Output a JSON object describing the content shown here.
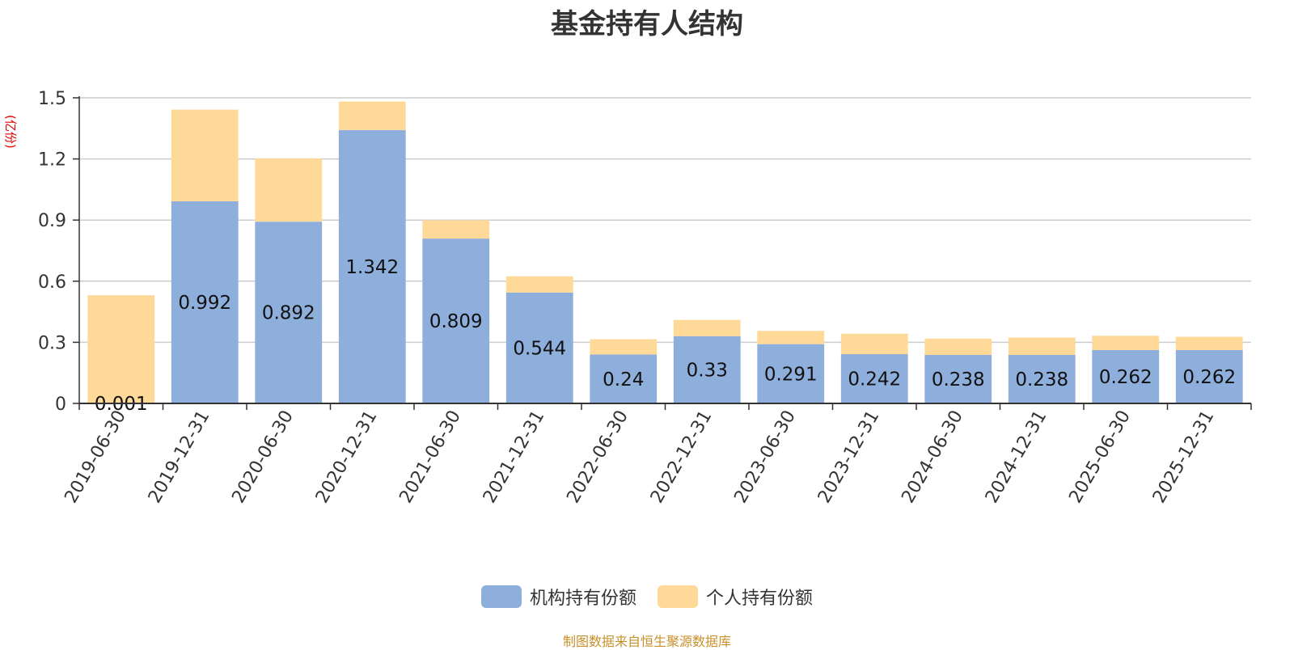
{
  "chart_data": {
    "type": "bar",
    "stacked": true,
    "title": "基金持有人结构",
    "unit": "(亿份)",
    "categories": [
      "2019-06-30",
      "2019-12-31",
      "2020-06-30",
      "2020-12-31",
      "2021-06-30",
      "2021-12-31",
      "2022-06-30",
      "2022-12-31",
      "2023-06-30",
      "2023-12-31",
      "2024-06-30",
      "2024-12-31",
      "2025-06-30",
      "2025-12-31"
    ],
    "series": [
      {
        "name": "机构持有份额",
        "color": "#8eaedb",
        "values": [
          0.001,
          0.992,
          0.892,
          1.342,
          0.809,
          0.544,
          0.24,
          0.33,
          0.291,
          0.242,
          0.238,
          0.238,
          0.262,
          0.262
        ],
        "labels": [
          "0.001",
          "0.992",
          "0.892",
          "1.342",
          "0.809",
          "0.544",
          "0.24",
          "0.33",
          "0.291",
          "0.242",
          "0.238",
          "0.238",
          "0.262",
          "0.262"
        ]
      },
      {
        "name": "个人持有份额",
        "color": "#fed998",
        "values": [
          0.53,
          0.45,
          0.31,
          0.14,
          0.09,
          0.08,
          0.075,
          0.08,
          0.065,
          0.1,
          0.08,
          0.085,
          0.07,
          0.065
        ]
      }
    ],
    "yticks": [
      "0",
      "0.3",
      "0.6",
      "0.9",
      "1.2",
      "1.5"
    ],
    "ylim": [
      0,
      1.5
    ],
    "grid": true,
    "legend_position": "bottom-center"
  },
  "source_note": "制图数据来自恒生聚源数据库"
}
